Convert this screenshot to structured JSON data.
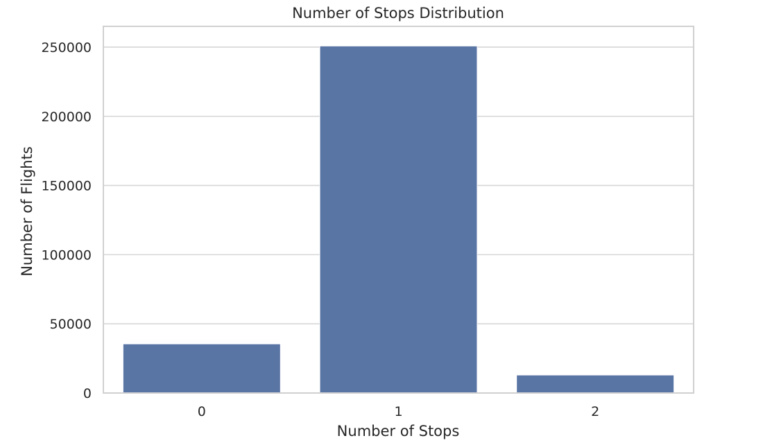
{
  "chart_data": {
    "type": "bar",
    "title": "Number of Stops Distribution",
    "xlabel": "Number of Stops",
    "ylabel": "Number of Flights",
    "categories": [
      "0",
      "1",
      "2"
    ],
    "values": [
      35500,
      250800,
      13000
    ],
    "ylim": [
      0,
      265000
    ],
    "yticks": [
      0,
      50000,
      100000,
      150000,
      200000,
      250000
    ],
    "ytick_labels": [
      "0",
      "50000",
      "100000",
      "150000",
      "200000",
      "250000"
    ],
    "grid": "horizontal",
    "bar_color": "#5975a4",
    "grid_color": "#d6d6d6",
    "frame_color": "#d0d0d0",
    "background": "#ffffff"
  }
}
